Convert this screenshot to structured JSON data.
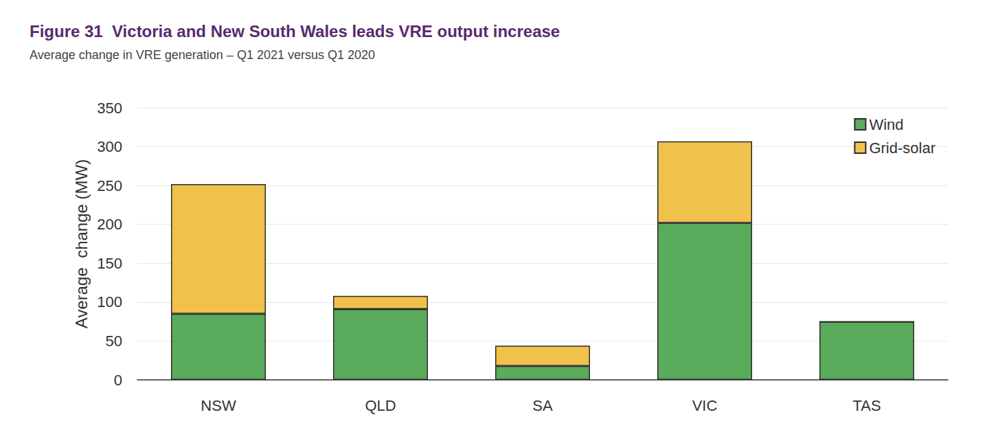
{
  "chart_data": {
    "type": "bar",
    "title": "Figure 31  Victoria and New South Wales leads VRE output increase",
    "subtitle": "Average change in VRE generation – Q1 2021 versus Q1 2020",
    "y_label": "Average  change (MW)",
    "categories": [
      "NSW",
      "QLD",
      "SA",
      "VIC",
      "TAS"
    ],
    "series": [
      {
        "name": "Wind",
        "color": "#5aab5c",
        "values": [
          85,
          91,
          18,
          202,
          75
        ]
      },
      {
        "name": "Grid-solar",
        "color": "#f0c24b",
        "values": [
          167,
          17,
          26,
          105,
          0
        ]
      }
    ],
    "stacked": true,
    "ylim": [
      0,
      350
    ],
    "yticks": [
      0,
      50,
      100,
      150,
      200,
      250,
      300,
      350
    ],
    "grid": true,
    "legend": "upper right"
  }
}
